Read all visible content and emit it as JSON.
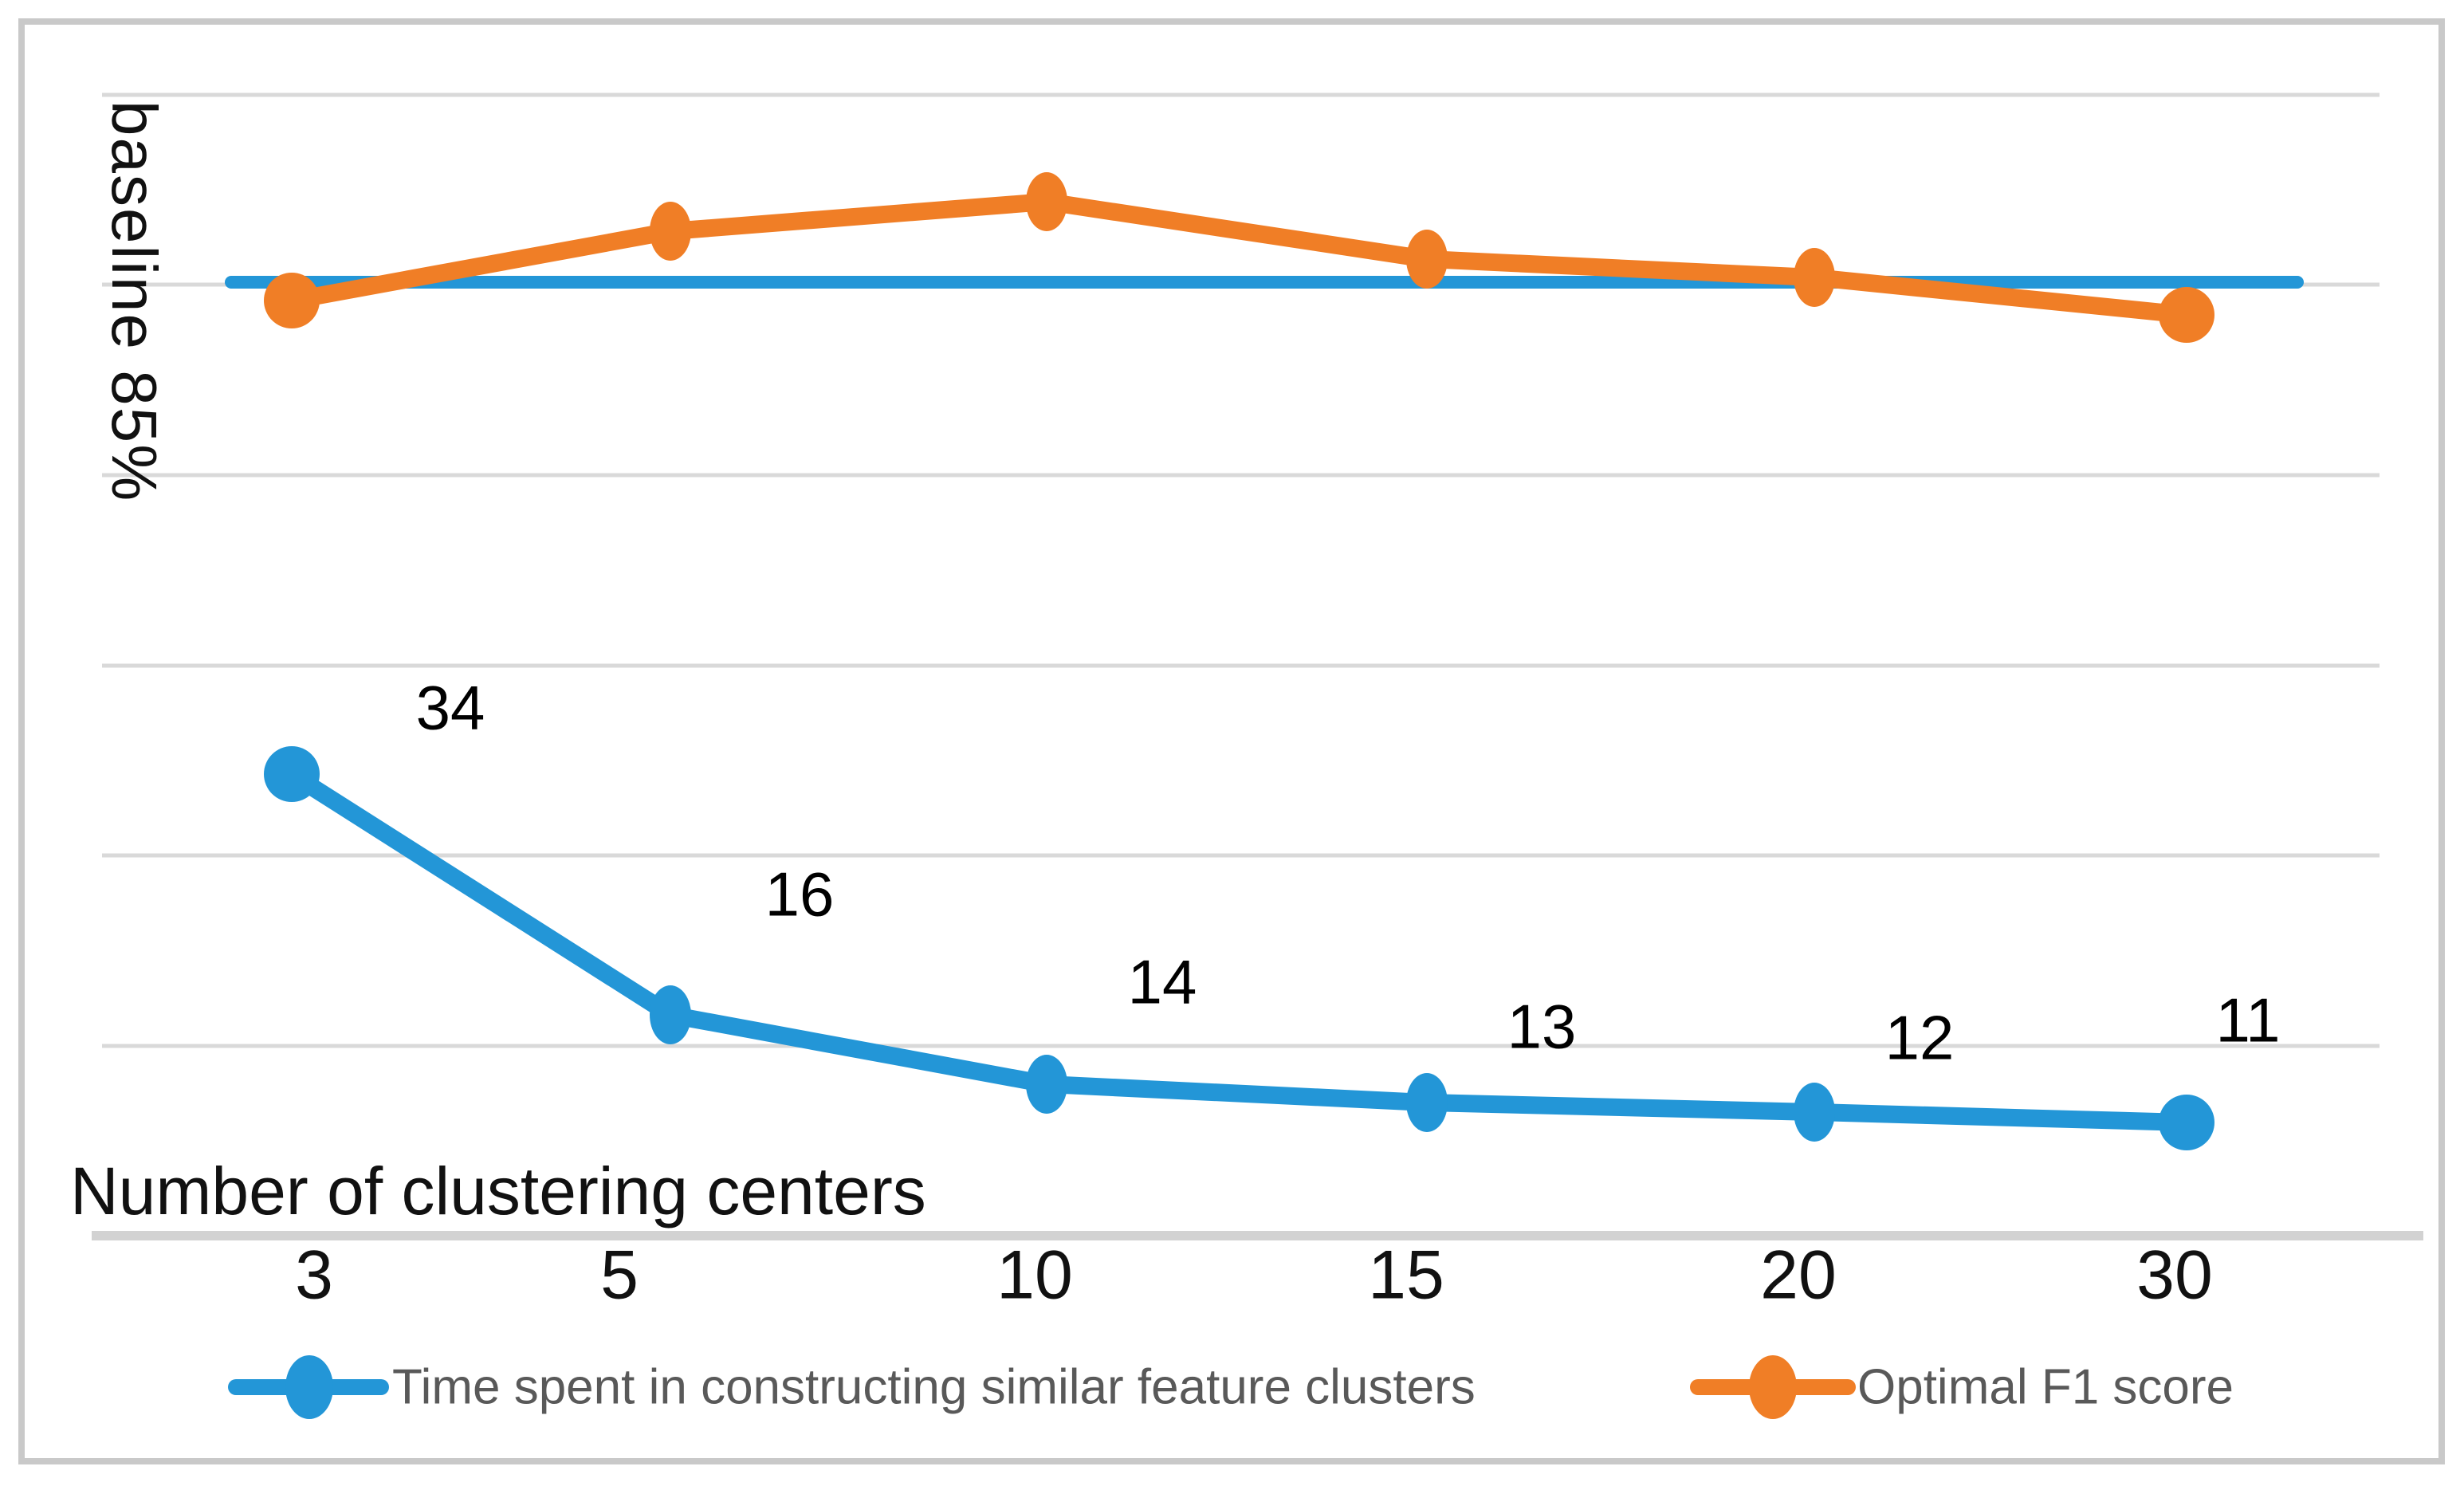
{
  "chart": {
    "y_axis_label": "baseline 85%",
    "x_axis_title": "Number of clustering centers",
    "legend": {
      "time_label": "Time spent in constructing similar feature clusters",
      "f1_label": "Optimal F1 score"
    }
  },
  "chart_data": {
    "type": "line",
    "categories": [
      3,
      5,
      10,
      15,
      20,
      30
    ],
    "x_axis_title": "Number of clustering centers",
    "y_axis_label": "baseline 85%",
    "grid": "horizontal",
    "legend_position": "bottom",
    "series": [
      {
        "name": "Time spent in constructing similar feature clusters",
        "color": "#2396D7",
        "values": [
          34,
          16,
          14,
          13,
          12,
          11
        ],
        "data_labels_shown": true
      },
      {
        "name": "Optimal F1 score",
        "color": "#F07E26",
        "data_labels_shown": false,
        "approx_values_relative_to_baseline_pct": [
          84.9,
          85.3,
          85.45,
          85.15,
          85.05,
          84.85
        ],
        "note": "no numeric labels shown; curve rises above the 85% baseline, peaks at 10 clusters, dips below baseline at 30"
      },
      {
        "name": "baseline",
        "type": "reference-line",
        "color": "#2396D7",
        "value_pct": 85,
        "label": "baseline 85%"
      }
    ],
    "colors": {
      "time_series": "#2396D7",
      "f1_series": "#F07E26",
      "gridline": "#D9D9D9",
      "axis_line": "#D2D2D2",
      "frame_border": "#C9C9C9",
      "legend_text": "#595959",
      "label_text": "#000000"
    }
  }
}
